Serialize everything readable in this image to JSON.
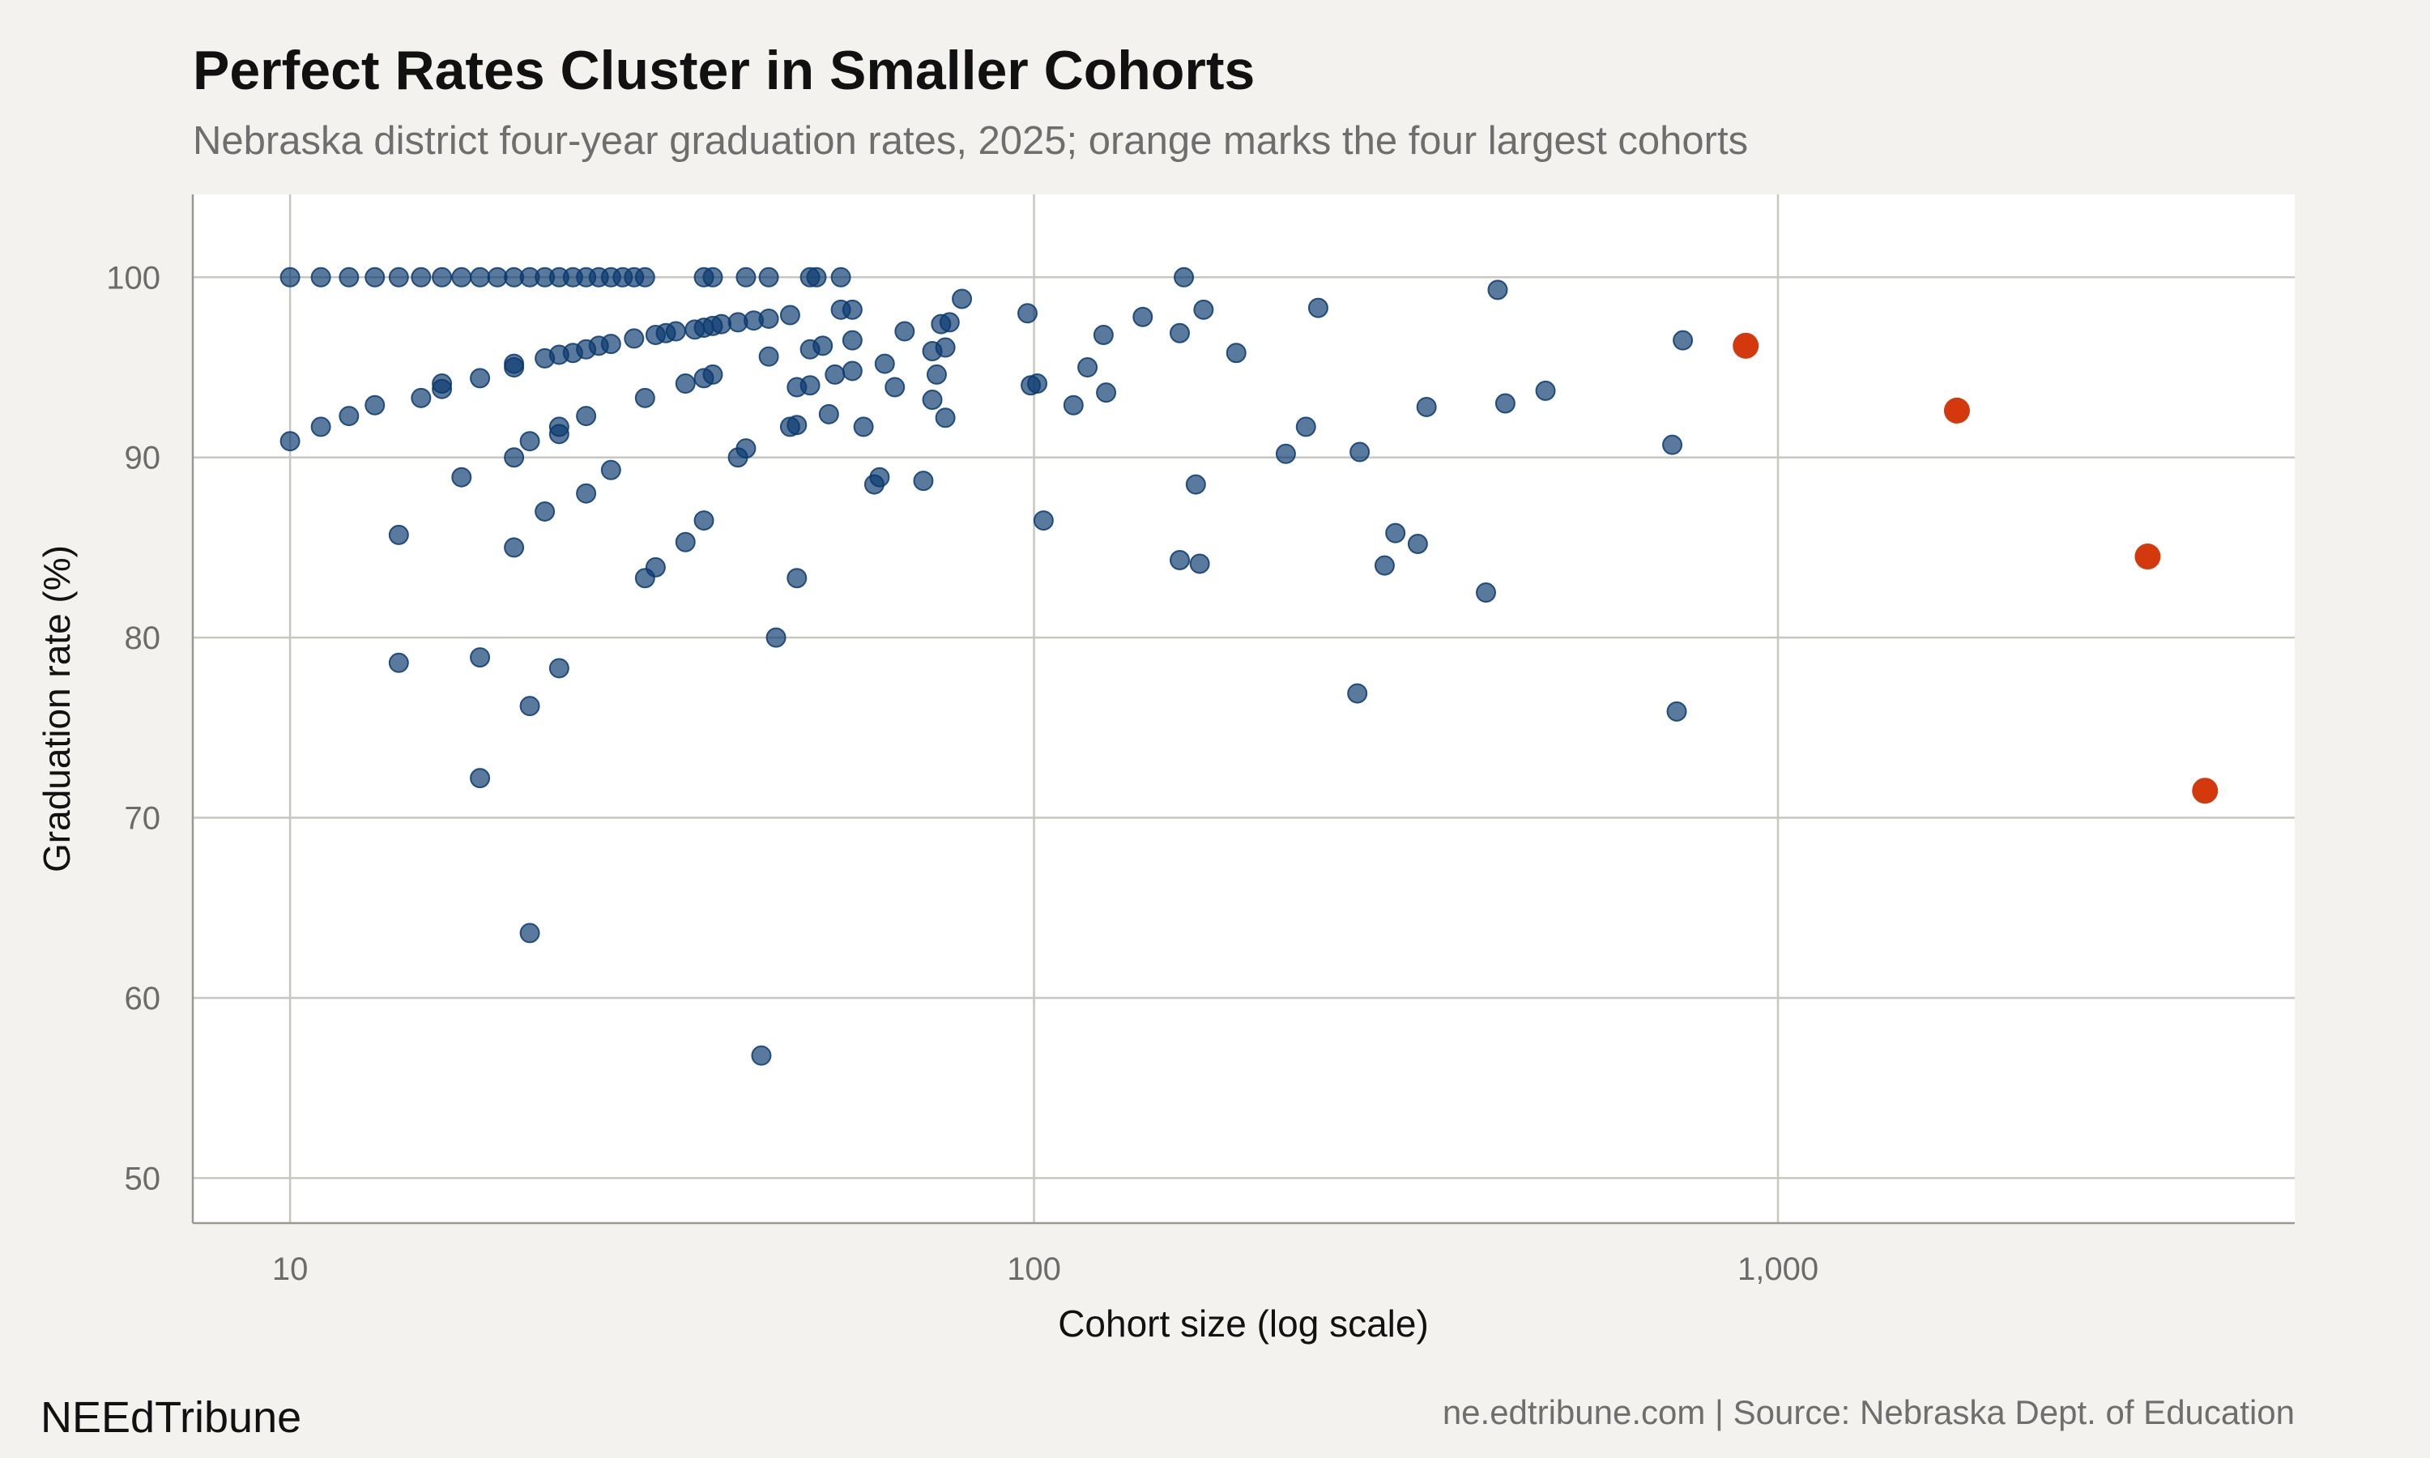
{
  "title": "Perfect Rates Cluster in Smaller Cohorts",
  "subtitle": "Nebraska district four-year graduation rates, 2025; orange marks the four largest cohorts",
  "brand": "NEEdTribune",
  "source": "ne.edtribune.com | Source: Nebraska Dept. of Education",
  "colors": {
    "background": "#f4f2ee",
    "plot_background": "#ffffff",
    "primary": "#0b3a6e",
    "highlight": "#d4380d"
  },
  "chart_data": {
    "type": "scatter",
    "title": "Perfect Rates Cluster in Smaller Cohorts",
    "subtitle": "Nebraska district four-year graduation rates, 2025; orange marks the four largest cohorts",
    "xlabel": "Cohort size (log scale)",
    "ylabel": "Graduation rate (%)",
    "x_scale": "log",
    "xlim": [
      7.4,
      4950
    ],
    "ylim": [
      47.5,
      104.6
    ],
    "x_ticks": [
      {
        "value": 10,
        "label": "10"
      },
      {
        "value": 100,
        "label": "100"
      },
      {
        "value": 1000,
        "label": "1,000"
      }
    ],
    "y_ticks": [
      {
        "value": 50,
        "label": "50"
      },
      {
        "value": 60,
        "label": "60"
      },
      {
        "value": 70,
        "label": "70"
      },
      {
        "value": 80,
        "label": "80"
      },
      {
        "value": 90,
        "label": "90"
      },
      {
        "value": 100,
        "label": "100"
      }
    ],
    "grid": true,
    "legend": "none",
    "series": [
      {
        "group": "other districts",
        "color": "#0b3a6e",
        "points": [
          [
            10,
            100
          ],
          [
            11,
            100
          ],
          [
            12,
            100
          ],
          [
            13,
            100
          ],
          [
            14,
            100
          ],
          [
            15,
            100
          ],
          [
            16,
            100
          ],
          [
            17,
            100
          ],
          [
            18,
            100
          ],
          [
            19,
            100
          ],
          [
            20,
            100
          ],
          [
            21,
            100
          ],
          [
            22,
            100
          ],
          [
            23,
            100
          ],
          [
            24,
            100
          ],
          [
            25,
            100
          ],
          [
            26,
            100
          ],
          [
            27,
            100
          ],
          [
            28,
            100
          ],
          [
            29,
            100
          ],
          [
            30,
            100
          ],
          [
            36,
            100
          ],
          [
            37,
            100
          ],
          [
            41,
            100
          ],
          [
            44,
            100
          ],
          [
            50,
            100
          ],
          [
            51,
            100
          ],
          [
            55,
            100
          ],
          [
            10,
            90.9
          ],
          [
            11,
            91.7
          ],
          [
            12,
            92.3
          ],
          [
            13,
            92.9
          ],
          [
            15,
            93.3
          ],
          [
            16,
            93.8
          ],
          [
            16,
            94.1
          ],
          [
            18,
            94.4
          ],
          [
            20,
            95
          ],
          [
            20,
            95.2
          ],
          [
            22,
            95.5
          ],
          [
            23,
            95.7
          ],
          [
            24,
            95.8
          ],
          [
            25,
            96
          ],
          [
            26,
            96.2
          ],
          [
            27,
            96.3
          ],
          [
            29,
            96.6
          ],
          [
            31,
            96.8
          ],
          [
            32,
            96.9
          ],
          [
            33,
            97
          ],
          [
            35,
            97.1
          ],
          [
            36,
            97.2
          ],
          [
            37,
            97.3
          ],
          [
            38,
            97.4
          ],
          [
            40,
            97.5
          ],
          [
            42,
            97.6
          ],
          [
            44,
            97.7
          ],
          [
            47,
            97.9
          ],
          [
            55,
            98.2
          ],
          [
            57,
            98.2
          ],
          [
            80,
            98.8
          ],
          [
            14,
            85.7
          ],
          [
            14,
            78.6
          ],
          [
            17,
            88.9
          ],
          [
            18,
            78.9
          ],
          [
            18,
            72.2
          ],
          [
            20,
            90
          ],
          [
            20,
            85
          ],
          [
            21,
            90.9
          ],
          [
            21,
            76.2
          ],
          [
            21,
            63.6
          ],
          [
            22,
            87
          ],
          [
            23,
            91.7
          ],
          [
            23,
            91.3
          ],
          [
            23,
            78.3
          ],
          [
            25,
            92.3
          ],
          [
            25,
            88
          ],
          [
            27,
            89.3
          ],
          [
            30,
            93.3
          ],
          [
            30,
            83.3
          ],
          [
            31,
            83.9
          ],
          [
            34,
            94.1
          ],
          [
            34,
            85.3
          ],
          [
            36,
            94.4
          ],
          [
            37,
            94.6
          ],
          [
            36,
            86.5
          ],
          [
            40,
            90
          ],
          [
            41,
            90.5
          ],
          [
            43,
            56.8
          ],
          [
            44,
            95.6
          ],
          [
            45,
            80
          ],
          [
            47,
            91.7
          ],
          [
            48,
            93.9
          ],
          [
            48,
            91.8
          ],
          [
            48,
            83.3
          ],
          [
            50,
            94
          ],
          [
            50,
            96
          ],
          [
            52,
            96.2
          ],
          [
            53,
            92.4
          ],
          [
            54,
            94.6
          ],
          [
            57,
            94.8
          ],
          [
            57,
            96.5
          ],
          [
            59,
            91.7
          ],
          [
            61,
            88.5
          ],
          [
            62,
            88.9
          ],
          [
            63,
            95.2
          ],
          [
            65,
            93.9
          ],
          [
            67,
            97
          ],
          [
            71,
            88.7
          ],
          [
            73,
            95.9
          ],
          [
            73,
            93.2
          ],
          [
            74,
            94.6
          ],
          [
            75,
            97.4
          ],
          [
            76,
            96.1
          ],
          [
            76,
            92.2
          ],
          [
            77,
            97.5
          ],
          [
            98,
            98
          ],
          [
            99,
            94
          ],
          [
            101,
            94.1
          ],
          [
            103,
            86.5
          ],
          [
            113,
            92.9
          ],
          [
            118,
            95
          ],
          [
            124,
            96.8
          ],
          [
            125,
            93.6
          ],
          [
            140,
            97.8
          ],
          [
            157,
            96.9
          ],
          [
            157,
            84.3
          ],
          [
            159,
            100
          ],
          [
            165,
            88.5
          ],
          [
            167,
            84.1
          ],
          [
            169,
            98.2
          ],
          [
            187,
            95.8
          ],
          [
            218,
            90.2
          ],
          [
            232,
            91.7
          ],
          [
            241,
            98.3
          ],
          [
            272,
            76.9
          ],
          [
            274,
            90.3
          ],
          [
            296,
            84
          ],
          [
            306,
            85.8
          ],
          [
            328,
            85.2
          ],
          [
            337,
            92.8
          ],
          [
            405,
            82.5
          ],
          [
            420,
            99.3
          ],
          [
            430,
            93
          ],
          [
            487,
            93.7
          ],
          [
            721,
            90.7
          ],
          [
            731,
            75.9
          ],
          [
            745,
            96.5
          ]
        ]
      },
      {
        "group": "four largest cohorts",
        "color": "#d4380d",
        "points": [
          [
            905,
            96.2
          ],
          [
            1740,
            92.6
          ],
          [
            3140,
            84.5
          ],
          [
            3750,
            71.5
          ]
        ]
      }
    ]
  }
}
